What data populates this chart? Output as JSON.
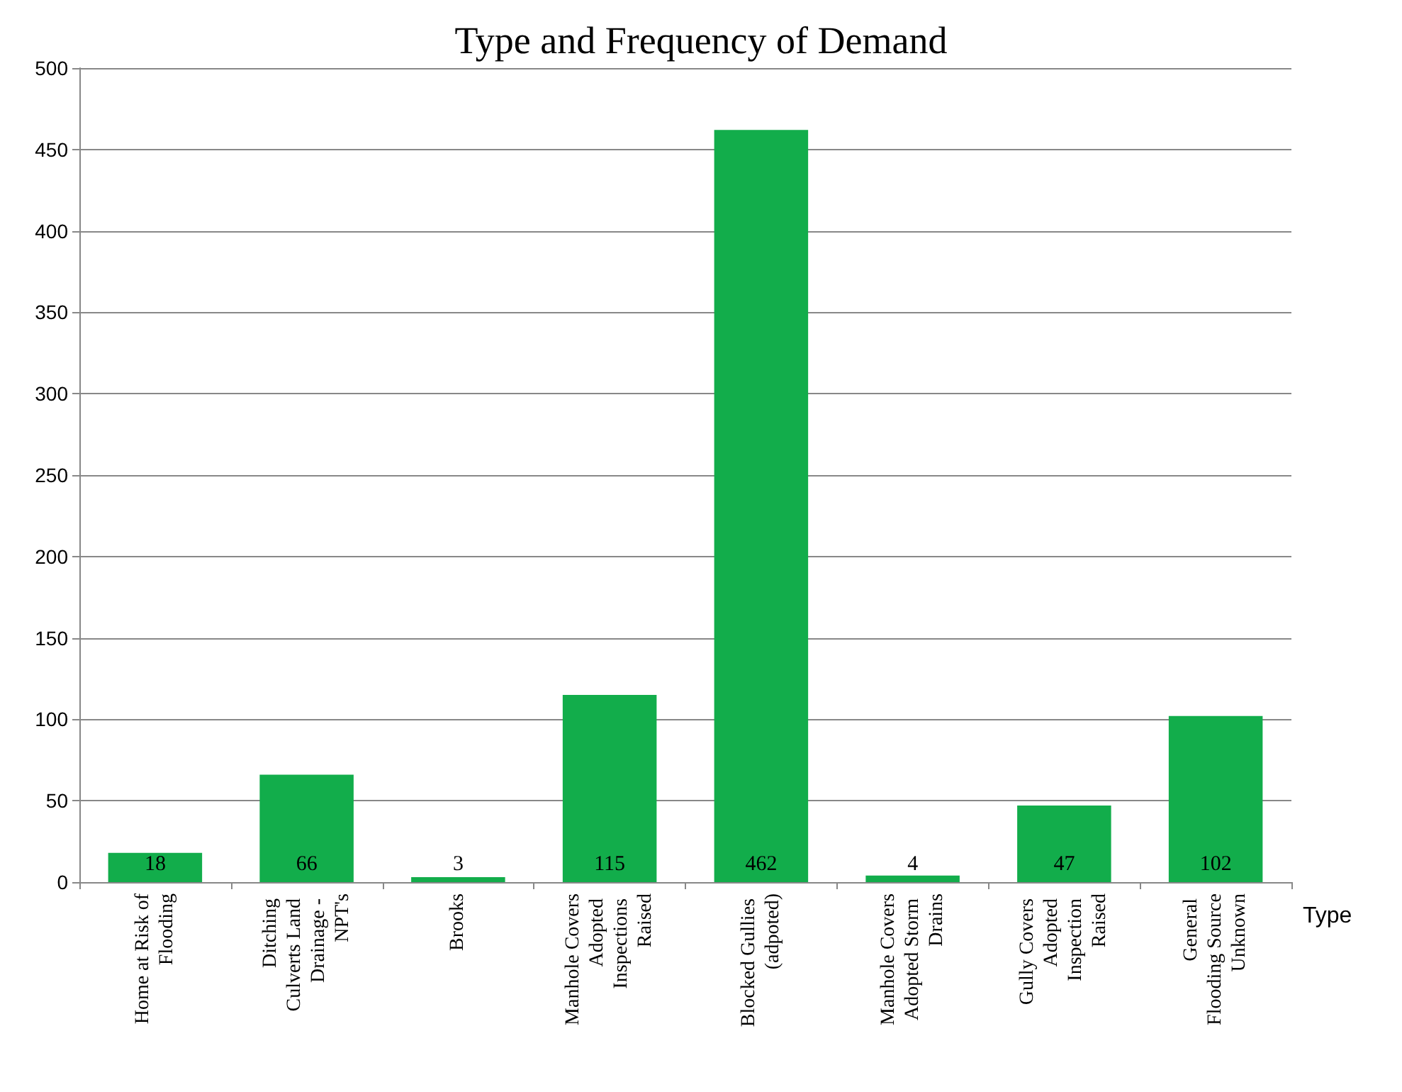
{
  "chart_data": {
    "type": "bar",
    "title": "Type and Frequency of Demand",
    "xlabel": "Type",
    "categories": [
      "Home at Risk of Flooding",
      "Ditching Culverts Land Drainage - NPT's",
      "Brooks",
      "Manhole Covers Adopted Inspections Raised",
      "Blocked Gullies (adpoted)",
      "Manhole Covers Adopted Storm Drains",
      "Gully Covers Adopted Inspection Raised",
      "General Flooding Source Unknown"
    ],
    "values": [
      18,
      66,
      3,
      115,
      462,
      4,
      47,
      102
    ],
    "color": "#12ad4b",
    "ylim": [
      0,
      500
    ],
    "yticks": [
      0,
      50,
      100,
      150,
      200,
      250,
      300,
      350,
      400,
      450,
      500
    ],
    "grid": "y",
    "data_labels": true
  }
}
